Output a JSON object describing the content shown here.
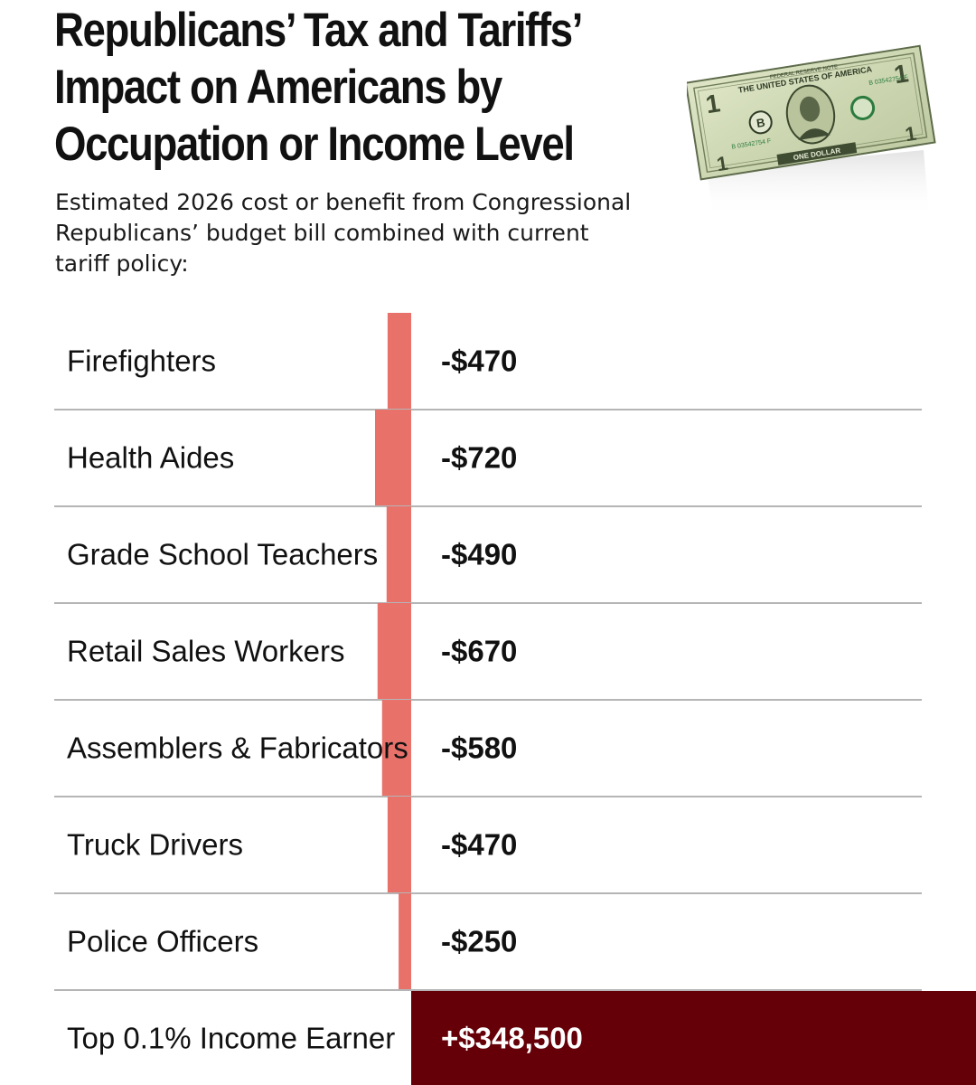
{
  "header": {
    "title_lines": [
      "Republicans’ Tax and Tariffs’",
      "Impact on Americans by",
      "Occupation or Income Level"
    ],
    "subtitle_lines": [
      "Estimated 2026 cost or benefit from Congressional",
      "Republicans’ budget bill combined with current",
      "tariff policy:"
    ]
  },
  "image": {
    "icon": "one-dollar-bill",
    "bill_text": {
      "top_banner": "FEDERAL RESERVE NOTE",
      "country": "THE UNITED STATES OF AMERICA",
      "serial": "B 03542754 F",
      "seal_letter": "B",
      "bottom_banner": "ONE DOLLAR",
      "denomination": "1"
    }
  },
  "chart_data": {
    "type": "bar",
    "orientation": "horizontal",
    "categories": [
      "Firefighters",
      "Health Aides",
      "Grade School Teachers",
      "Retail Sales Workers",
      "Assemblers & Fabricators",
      "Truck Drivers",
      "Police Officers",
      "Top 0.1% Income Earner"
    ],
    "values": [
      -470,
      -720,
      -490,
      -670,
      -580,
      -470,
      -250,
      348500
    ],
    "value_labels": [
      "-$470",
      "-$720",
      "-$490",
      "-$670",
      "-$580",
      "-$470",
      "-$250",
      "+$348,500"
    ],
    "colors": {
      "negative": "#e8716a",
      "positive": "#660008",
      "divider": "#b5b5b5",
      "text": "#111111",
      "positive_text": "#ffffff"
    },
    "grid": false,
    "legend": "none"
  }
}
